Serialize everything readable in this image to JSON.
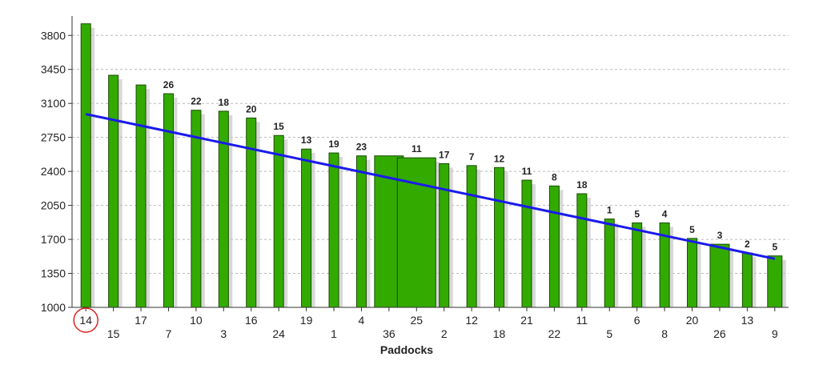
{
  "chart_data": {
    "type": "bar",
    "xlabel": "Paddocks",
    "ylabel": "",
    "ylim": [
      1000,
      4000
    ],
    "yticks": [
      1000,
      1350,
      1700,
      2050,
      2400,
      2750,
      3100,
      3450,
      3800
    ],
    "grid": "horizontal-dashed",
    "bar_color": "#33aa00",
    "trend_color": "#1a1aee",
    "highlight_color": "#e02020",
    "highlighted_category": "14",
    "categories": [
      "14",
      "15",
      "17",
      "7",
      "10",
      "3",
      "16",
      "24",
      "19",
      "1",
      "4",
      "36",
      "25",
      "2",
      "12",
      "18",
      "21",
      "22",
      "11",
      "5",
      "6",
      "8",
      "20",
      "26",
      "13",
      "9"
    ],
    "values": [
      3920,
      3390,
      3290,
      3200,
      3030,
      3020,
      2950,
      2770,
      2630,
      2590,
      2560,
      2560,
      2540,
      2480,
      2460,
      2440,
      2310,
      2250,
      2170,
      1910,
      1870,
      1870,
      1710,
      1650,
      1560,
      1530
    ],
    "bar_labels": [
      "",
      "",
      "",
      "26",
      "22",
      "18",
      "20",
      "15",
      "13",
      "19",
      "23",
      "",
      "11",
      "17",
      "7",
      "12",
      "11",
      "8",
      "18",
      "1",
      "5",
      "4",
      "5",
      "3",
      "2",
      "5"
    ],
    "bar_widths": [
      1,
      1,
      1,
      1,
      1,
      1,
      1,
      1,
      1,
      1,
      1,
      3,
      4,
      1,
      1,
      1,
      1,
      1,
      1,
      1,
      1,
      1,
      1,
      2,
      1,
      1.5
    ],
    "trend": {
      "start": 2990,
      "end": 1500
    }
  }
}
